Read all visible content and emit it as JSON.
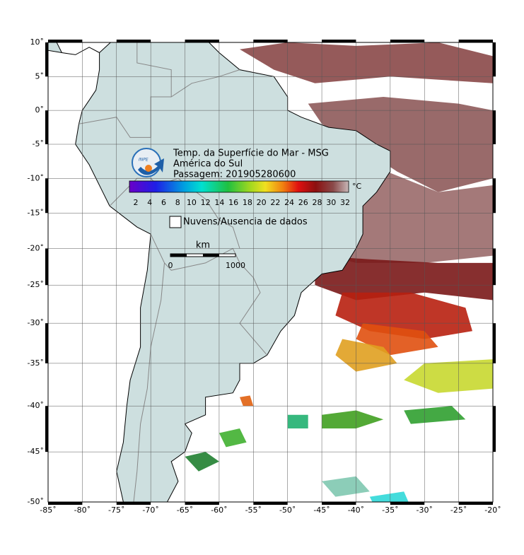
{
  "header": {
    "line1": "Temp. da Superfície do Mar - MSG",
    "line2": "América do Sul",
    "line3": "Passagem: 201905280600"
  },
  "logo": {
    "text": "INPE"
  },
  "colorbar": {
    "ticks": [
      2,
      4,
      6,
      8,
      10,
      12,
      14,
      16,
      18,
      20,
      22,
      24,
      26,
      28,
      30,
      32
    ],
    "unit": "°C"
  },
  "legend": {
    "label": "Nuvens/Ausencia de dados"
  },
  "scale": {
    "unit": "km",
    "start": 0,
    "end": 1000
  },
  "axes": {
    "lat_labels": [
      "10˚",
      "5˚",
      "0˚",
      "-5˚",
      "-10˚",
      "-15˚",
      "-20˚",
      "-25˚",
      "-30˚",
      "-35˚",
      "-40˚",
      "-45˚",
      "-50˚"
    ],
    "lon_labels": [
      "-85˚",
      "-80˚",
      "-75˚",
      "-70˚",
      "-65˚",
      "-60˚",
      "-55˚",
      "-50˚",
      "-45˚",
      "-40˚",
      "-35˚",
      "-30˚",
      "-25˚",
      "-20˚"
    ]
  }
}
